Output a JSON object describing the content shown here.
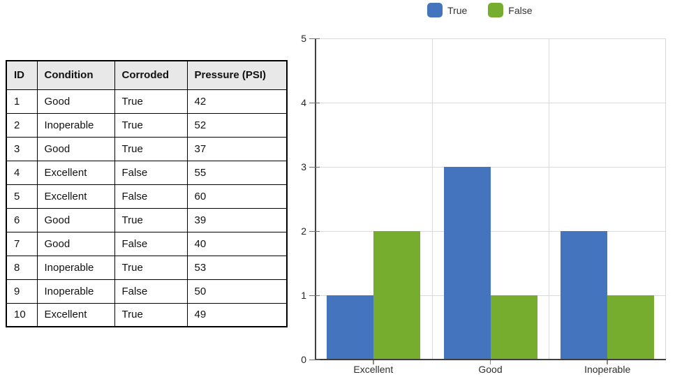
{
  "table": {
    "headers": [
      "ID",
      "Condition",
      "Corroded",
      "Pressure (PSI)"
    ],
    "rows": [
      [
        "1",
        "Good",
        "True",
        "42"
      ],
      [
        "2",
        "Inoperable",
        "True",
        "52"
      ],
      [
        "3",
        "Good",
        "True",
        "37"
      ],
      [
        "4",
        "Excellent",
        "False",
        "55"
      ],
      [
        "5",
        "Excellent",
        "False",
        "60"
      ],
      [
        "6",
        "Good",
        "True",
        "39"
      ],
      [
        "7",
        "Good",
        "False",
        "40"
      ],
      [
        "8",
        "Inoperable",
        "True",
        "53"
      ],
      [
        "9",
        "Inoperable",
        "False",
        "50"
      ],
      [
        "10",
        "Excellent",
        "True",
        "49"
      ]
    ]
  },
  "chart_data": {
    "type": "bar",
    "title": "",
    "categories": [
      "Excellent",
      "Good",
      "Inoperable"
    ],
    "series": [
      {
        "name": "True",
        "color": "#4374BD",
        "values": [
          1,
          3,
          2
        ]
      },
      {
        "name": "False",
        "color": "#77AD2F",
        "values": [
          2,
          1,
          1
        ]
      }
    ],
    "xlabel": "",
    "ylabel": "",
    "ylim": [
      0,
      5
    ],
    "yticks": [
      0,
      1,
      2,
      3,
      4,
      5
    ],
    "grid": true,
    "legend_position": "top"
  },
  "colors": {
    "true_bar": "#4374BD",
    "false_bar": "#77AD2F",
    "table_header_bg": "#E8E8E8",
    "gridline": "#D9D9D9",
    "axis": "#3F3F3F"
  }
}
